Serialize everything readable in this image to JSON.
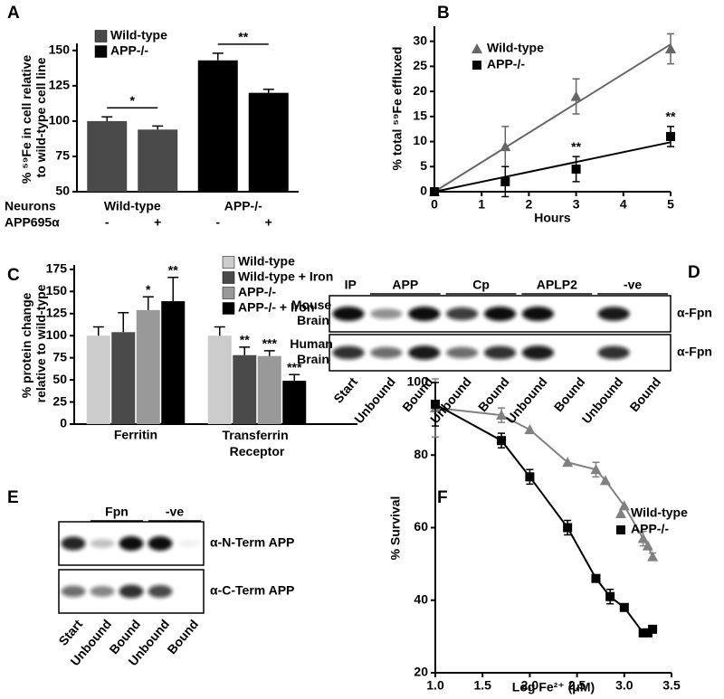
{
  "chart_data": [
    {
      "panel": "A",
      "type": "bar",
      "ylabel": "% ⁵⁹Fe in cell relative to wild-type cell line",
      "row_labels": [
        "Neurons",
        "APP695α"
      ],
      "groups": [
        "Wild-type",
        "APP-/-"
      ],
      "treatments": [
        "-",
        "+"
      ],
      "series": [
        {
          "name": "Wild-type",
          "color": "#4a4a4a",
          "values": [
            100,
            94
          ],
          "errors": [
            3,
            2.5
          ]
        },
        {
          "name": "APP-/-",
          "color": "#000000",
          "values": [
            143,
            120
          ],
          "errors": [
            5,
            2.5
          ]
        }
      ],
      "significance": [
        "*",
        "**"
      ],
      "ylim": [
        50,
        155
      ],
      "yticks": [
        50,
        75,
        100,
        125,
        150
      ]
    },
    {
      "panel": "B",
      "type": "line",
      "xlabel": "Hours",
      "ylabel": "% total ⁵⁹Fe effluxed",
      "x": [
        0,
        1.5,
        3,
        5
      ],
      "series": [
        {
          "name": "Wild-type",
          "color": "#666666",
          "marker": "triangle",
          "values": [
            0,
            9,
            19,
            28.5
          ],
          "errors": [
            0,
            4,
            3.5,
            3
          ]
        },
        {
          "name": "APP-/-",
          "color": "#000000",
          "marker": "square",
          "values": [
            0,
            2,
            4.5,
            11
          ],
          "errors": [
            0,
            3,
            2.5,
            2
          ],
          "significance": [
            null,
            null,
            "**",
            "**"
          ]
        }
      ],
      "xlim": [
        0,
        5
      ],
      "xticks": [
        0,
        1,
        2,
        3,
        4,
        5
      ],
      "ylim": [
        0,
        33
      ],
      "yticks": [
        0,
        5,
        10,
        15,
        20,
        25,
        30
      ]
    },
    {
      "panel": "C",
      "type": "bar",
      "ylabel": "% protein change relative to wild-type",
      "categories": [
        "Ferritin",
        "Transferrin Receptor"
      ],
      "series": [
        {
          "name": "Wild-type",
          "color": "#cccccc",
          "values": [
            100,
            100
          ],
          "errors": [
            10,
            10
          ],
          "significance": [
            null,
            null
          ]
        },
        {
          "name": "Wild-type + Iron",
          "color": "#4a4a4a",
          "values": [
            104,
            78
          ],
          "errors": [
            22,
            9
          ],
          "significance": [
            null,
            "**"
          ]
        },
        {
          "name": "APP-/-",
          "color": "#999999",
          "values": [
            129,
            77
          ],
          "errors": [
            15,
            6
          ],
          "significance": [
            "*",
            "***"
          ]
        },
        {
          "name": "APP-/- + Iron",
          "color": "#000000",
          "values": [
            139,
            49
          ],
          "errors": [
            27,
            7
          ],
          "significance": [
            "**",
            "***"
          ]
        }
      ],
      "ylim": [
        0,
        180
      ],
      "yticks": [
        0,
        25,
        50,
        75,
        100,
        125,
        150,
        175
      ]
    },
    {
      "panel": "F",
      "type": "scatter",
      "xlabel": "Log Fe²⁺ (μM)",
      "ylabel": "% Survival",
      "series": [
        {
          "name": "Wild-type",
          "color": "#808080",
          "marker": "triangle",
          "x": [
            1.0,
            1.7,
            2.0,
            2.4,
            2.7,
            2.8,
            3.0,
            3.2,
            3.25,
            3.3
          ],
          "values": [
            93,
            91,
            87,
            78,
            76,
            73,
            66,
            57,
            55,
            52
          ],
          "errors": [
            8,
            2,
            0,
            0,
            2,
            0,
            0,
            2,
            0,
            1
          ]
        },
        {
          "name": "APP-/-",
          "color": "#000000",
          "marker": "square",
          "x": [
            1.0,
            1.7,
            2.0,
            2.4,
            2.7,
            2.85,
            3.0,
            3.2,
            3.25,
            3.3
          ],
          "values": [
            94,
            84,
            74,
            60,
            46,
            41,
            38,
            31,
            31,
            32
          ],
          "errors": [
            6,
            2,
            2,
            2,
            0,
            2,
            0,
            1,
            0,
            1
          ]
        }
      ],
      "xlim": [
        1,
        3.5
      ],
      "xticks": [
        {
          "value": 1,
          "label": "1.0"
        },
        1.5,
        {
          "value": 2,
          "label": "2.0"
        },
        2.5,
        {
          "value": 3,
          "label": "3.0"
        },
        3.5
      ],
      "ylim": [
        20,
        100
      ],
      "yticks": [
        20,
        40,
        60,
        80,
        100
      ]
    }
  ],
  "blots": [
    {
      "panel": "D",
      "header_label": "IP",
      "groups": [
        "APP",
        "Cp",
        "APLP2",
        "-ve"
      ],
      "rows": [
        {
          "label": "Mouse Brain",
          "antibody": "α-Fpn"
        },
        {
          "label": "Human Brain",
          "antibody": "α-Fpn"
        }
      ],
      "lanes": [
        "Start",
        "Unbound",
        "Bound",
        "Unbound",
        "Bound",
        "Unbound",
        "Bound",
        "Unbound",
        "Bound"
      ]
    },
    {
      "panel": "E",
      "groups": [
        "Fpn",
        "-ve"
      ],
      "rows": [
        {
          "antibody": "α-N-Term APP"
        },
        {
          "antibody": "α-C-Term APP"
        }
      ],
      "lanes": [
        "Start",
        "Unbound",
        "Bound",
        "Unbound",
        "Bound"
      ]
    }
  ]
}
